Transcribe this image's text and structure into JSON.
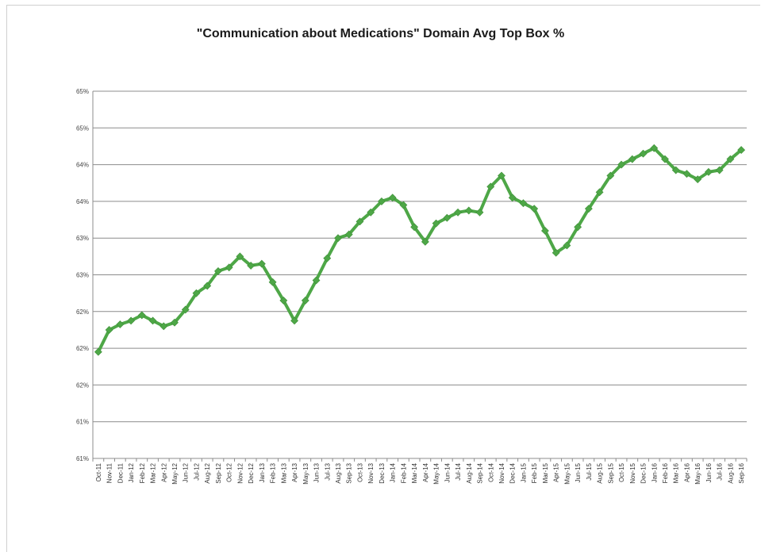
{
  "chart_data": {
    "type": "line",
    "title": "\"Communication about Medications\" Domain Avg Top Box %",
    "xlabel": "",
    "ylabel": "",
    "y_tick_labels": [
      "61%",
      "61%",
      "62%",
      "62%",
      "62%",
      "63%",
      "63%",
      "64%",
      "64%",
      "65%",
      "65%"
    ],
    "ylim": [
      0,
      10
    ],
    "grid": true,
    "legend": "none",
    "categories": [
      "Oct-11",
      "Nov-11",
      "Dec-11",
      "Jan-12",
      "Feb-12",
      "Mar-12",
      "Apr-12",
      "May-12",
      "Jun-12",
      "Jul-12",
      "Aug-12",
      "Sep-12",
      "Oct-12",
      "Nov-12",
      "Dec-12",
      "Jan-13",
      "Feb-13",
      "Mar-13",
      "Apr-13",
      "May-13",
      "Jun-13",
      "Jul-13",
      "Aug-13",
      "Sep-13",
      "Oct-13",
      "Nov-13",
      "Dec-13",
      "Jan-14",
      "Feb-14",
      "Mar-14",
      "Apr-14",
      "May-14",
      "Jun-14",
      "Jul-14",
      "Aug-14",
      "Sep-14",
      "Oct-14",
      "Nov-14",
      "Dec-14",
      "Jan-15",
      "Feb-15",
      "Mar-15",
      "Apr-15",
      "May-15",
      "Jun-15",
      "Jul-15",
      "Aug-15",
      "Sep-15",
      "Oct-15",
      "Nov-15",
      "Dec-15",
      "Jan-16",
      "Feb-16",
      "Mar-16",
      "Apr-16",
      "May-16",
      "Jun-16",
      "Jul-16",
      "Aug-16",
      "Sep-16"
    ],
    "series": [
      {
        "values": [
          2.9,
          3.5,
          3.65,
          3.75,
          3.9,
          3.75,
          3.6,
          3.7,
          4.05,
          4.5,
          4.7,
          5.1,
          5.2,
          5.5,
          5.25,
          5.3,
          4.8,
          4.3,
          3.75,
          4.3,
          4.85,
          5.45,
          6.0,
          6.1,
          6.45,
          6.7,
          7.0,
          7.1,
          6.9,
          6.3,
          5.9,
          6.4,
          6.55,
          6.7,
          6.75,
          6.7,
          7.4,
          7.7,
          7.1,
          6.95,
          6.8,
          6.2,
          5.6,
          5.8,
          6.3,
          6.8,
          7.25,
          7.7,
          8.0,
          8.15,
          8.3,
          8.45,
          8.15,
          7.85,
          7.75,
          7.6,
          7.8,
          7.85,
          8.15,
          8.4
        ],
        "color": "#4ea747"
      }
    ]
  }
}
